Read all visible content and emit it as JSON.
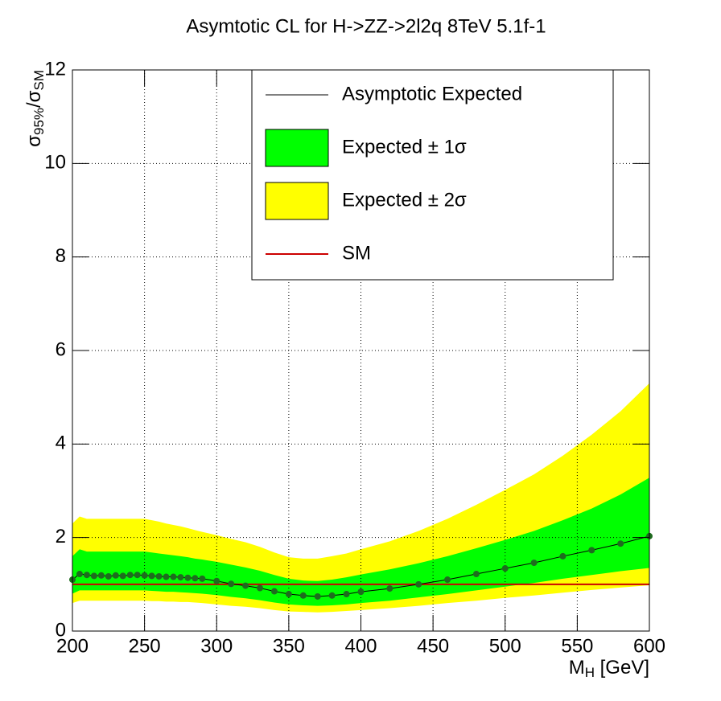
{
  "chart_data": {
    "type": "limit",
    "title": "Asymtotic CL for H->ZZ->2l2q  8TeV  5.1f-1",
    "xlabel": [
      "M",
      "H",
      " [GeV]"
    ],
    "ylabel": [
      "σ",
      "95%",
      "/σ",
      "SM"
    ],
    "xlim": [
      200,
      600
    ],
    "ylim": [
      0,
      12
    ],
    "xticks": [
      200,
      250,
      300,
      350,
      400,
      450,
      500,
      550,
      600
    ],
    "yticks": [
      0,
      2,
      4,
      6,
      8,
      10,
      12
    ],
    "grid": true,
    "x": [
      200,
      205,
      210,
      215,
      220,
      225,
      230,
      235,
      240,
      245,
      250,
      255,
      260,
      265,
      270,
      275,
      280,
      285,
      290,
      300,
      310,
      320,
      330,
      340,
      350,
      360,
      370,
      380,
      390,
      400,
      420,
      440,
      460,
      480,
      500,
      520,
      540,
      560,
      580,
      600
    ],
    "series": [
      {
        "name": "Asymptotic Expected",
        "color": "#000000",
        "marker_color": "#1f6b1f",
        "values": [
          1.1,
          1.22,
          1.2,
          1.18,
          1.19,
          1.17,
          1.19,
          1.18,
          1.2,
          1.2,
          1.19,
          1.18,
          1.17,
          1.16,
          1.16,
          1.15,
          1.14,
          1.13,
          1.12,
          1.07,
          1.01,
          0.97,
          0.92,
          0.85,
          0.79,
          0.76,
          0.74,
          0.76,
          0.79,
          0.84,
          0.91,
          1.0,
          1.1,
          1.22,
          1.34,
          1.46,
          1.6,
          1.73,
          1.87,
          2.03
        ]
      }
    ],
    "bands": [
      {
        "name": "Expected ± 2σ",
        "color": "#ffff00",
        "lower": [
          0.6,
          0.65,
          0.65,
          0.65,
          0.65,
          0.65,
          0.65,
          0.65,
          0.65,
          0.65,
          0.65,
          0.64,
          0.64,
          0.63,
          0.63,
          0.62,
          0.62,
          0.61,
          0.6,
          0.57,
          0.54,
          0.52,
          0.49,
          0.45,
          0.42,
          0.41,
          0.4,
          0.41,
          0.43,
          0.45,
          0.49,
          0.54,
          0.6,
          0.65,
          0.71,
          0.76,
          0.82,
          0.88,
          0.93,
          0.98
        ],
        "upper": [
          2.3,
          2.45,
          2.4,
          2.4,
          2.4,
          2.4,
          2.4,
          2.4,
          2.4,
          2.4,
          2.4,
          2.37,
          2.34,
          2.3,
          2.27,
          2.24,
          2.2,
          2.16,
          2.12,
          2.05,
          1.97,
          1.9,
          1.8,
          1.68,
          1.58,
          1.55,
          1.55,
          1.6,
          1.66,
          1.75,
          1.92,
          2.14,
          2.4,
          2.7,
          3.02,
          3.35,
          3.75,
          4.2,
          4.7,
          5.3
        ]
      },
      {
        "name": "Expected ± 1σ",
        "color": "#00ff00",
        "lower": [
          0.8,
          0.87,
          0.87,
          0.87,
          0.87,
          0.87,
          0.87,
          0.87,
          0.87,
          0.87,
          0.87,
          0.86,
          0.85,
          0.84,
          0.84,
          0.83,
          0.82,
          0.81,
          0.8,
          0.77,
          0.73,
          0.7,
          0.66,
          0.61,
          0.57,
          0.55,
          0.54,
          0.55,
          0.57,
          0.6,
          0.65,
          0.72,
          0.79,
          0.87,
          0.95,
          1.03,
          1.12,
          1.2,
          1.28,
          1.35
        ],
        "upper": [
          1.6,
          1.75,
          1.7,
          1.7,
          1.7,
          1.7,
          1.7,
          1.7,
          1.7,
          1.7,
          1.7,
          1.68,
          1.66,
          1.64,
          1.62,
          1.6,
          1.58,
          1.55,
          1.53,
          1.48,
          1.42,
          1.36,
          1.29,
          1.2,
          1.12,
          1.08,
          1.07,
          1.1,
          1.15,
          1.21,
          1.32,
          1.45,
          1.6,
          1.77,
          1.95,
          2.14,
          2.37,
          2.62,
          2.92,
          3.28
        ]
      }
    ],
    "sm": {
      "name": "SM",
      "color": "#cc0000",
      "value": 1
    },
    "legend": [
      "series.0",
      "bands.1",
      "bands.0",
      "sm"
    ]
  }
}
